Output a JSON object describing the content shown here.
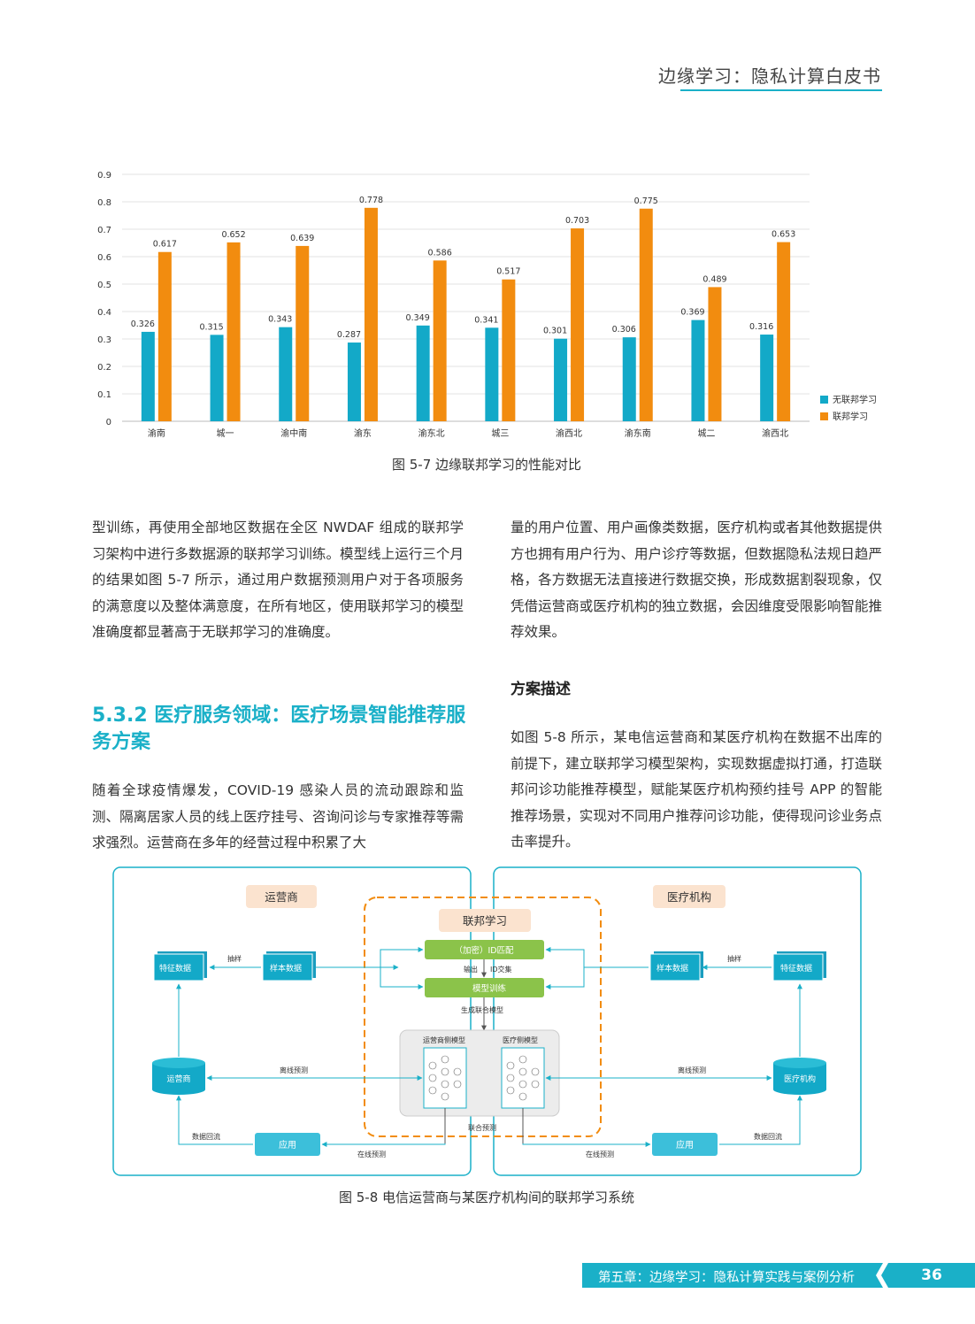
{
  "header": {
    "title": "边缘学习：隐私计算白皮书"
  },
  "chart_data": {
    "type": "bar",
    "categories": [
      "渝南",
      "城一",
      "渝中南",
      "渝东",
      "渝东北",
      "城三",
      "渝西北",
      "渝东南",
      "城二",
      "渝西北"
    ],
    "series": [
      {
        "name": "无联邦学习",
        "color": "#13a9c8",
        "values": [
          0.326,
          0.315,
          0.343,
          0.287,
          0.349,
          0.341,
          0.301,
          0.306,
          0.369,
          0.316
        ]
      },
      {
        "name": "联邦学习",
        "color": "#f28c0f",
        "values": [
          0.617,
          0.652,
          0.639,
          0.778,
          0.586,
          0.517,
          0.703,
          0.775,
          0.489,
          0.653
        ]
      }
    ],
    "yticks": [
      "0",
      "0.1",
      "0.2",
      "0.3",
      "0.4",
      "0.5",
      "0.6",
      "0.7",
      "0.8",
      "0.9"
    ],
    "ylim": [
      0,
      0.9
    ],
    "legend": "right",
    "grid": true
  },
  "figure1": {
    "caption": "图 5-7 边缘联邦学习的性能对比"
  },
  "left_column": {
    "para1": "型训练，再使用全部地区数据在全区 NWDAF 组成的联邦学习架构中进行多数据源的联邦学习训练。模型线上运行三个月的结果如图 5-7 所示，通过用户数据预测用户对于各项服务的满意度以及整体满意度，在所有地区，使用联邦学习的模型准确度都显著高于无联邦学习的准确度。",
    "section_title": "5.3.2 医疗服务领域：医疗场景智能推荐服务方案",
    "para2": "随着全球疫情爆发，COVID-19 感染人员的流动跟踪和监测、隔离居家人员的线上医疗挂号、咨询问诊与专家推荐等需求强烈。运营商在多年的经营过程中积累了大"
  },
  "right_column": {
    "para1": "量的用户位置、用户画像类数据，医疗机构或者其他数据提供方也拥有用户行为、用户诊疗等数据，但数据隐私法规日趋严格，各方数据无法直接进行数据交换，形成数据割裂现象，仅凭借运营商或医疗机构的独立数据，会因维度受限影响智能推荐效果。",
    "sub_title": "方案描述",
    "para2": "如图 5-8 所示，某电信运营商和某医疗机构在数据不出库的前提下，建立联邦学习模型架构，实现数据虚拟打通，打造联邦问诊功能推荐模型，赋能某医疗机构预约挂号 APP 的智能推荐场景，实现对不同用户推荐问诊功能，使得现问诊业务点击率提升。"
  },
  "diagram": {
    "left_title": "运营商",
    "right_title": "医疗机构",
    "center_title": "联邦学习",
    "step1": "（加密）ID匹配",
    "step2": "模型训练",
    "label_output": "输出",
    "label_id": "ID交集",
    "label_gen": "生成联合模型",
    "left_model": "运营商侧模型",
    "right_model": "医疗侧模型",
    "feature_data": "特征数据",
    "sample_data": "样本数据",
    "sampling": "抽样",
    "operator_db": "运营商",
    "medical_db": "医疗机构",
    "offline_predict": "离线预测",
    "joint_predict": "联合预测",
    "app": "应用",
    "data_return": "数据回流",
    "online_predict": "在线预测"
  },
  "figure2": {
    "caption": "图 5-8 电信运营商与某医疗机构间的联邦学习系统"
  },
  "footer": {
    "chapter": "第五章：边缘学习：隐私计算实践与案例分析",
    "page": "36"
  }
}
